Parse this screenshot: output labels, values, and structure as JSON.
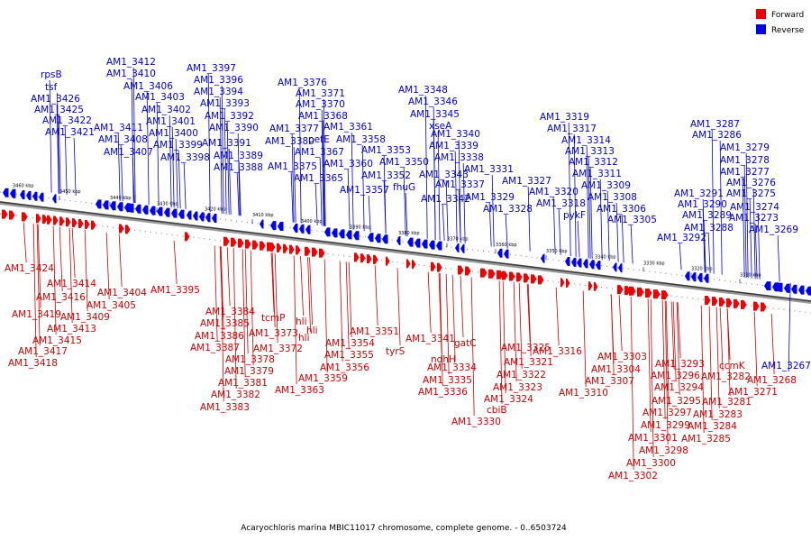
{
  "caption": "Acaryochloris marina MBIC11017 chromosome, complete genome. - 0..6503724",
  "legend": [
    {
      "label": "Forward",
      "color": "#ee0000"
    },
    {
      "label": "Reverse",
      "color": "#0000ee"
    }
  ],
  "colors": {
    "forward": "#ee0000",
    "reverse": "#0000ee",
    "forward_line": "#cc0000",
    "reverse_line": "#0000cc"
  },
  "axis_ticks": [
    "3460 kbp",
    "3450 kbp",
    "3440 kbp",
    "3430 kbp",
    "3420 kbp",
    "3410 kbp",
    "3400 kbp",
    "3390 kbp",
    "3380 kbp",
    "3370 kbp",
    "3360 kbp",
    "3350 kbp",
    "3340 kbp",
    "3330 kbp",
    "3320 kbp",
    "3310 kbp"
  ],
  "reverse_labels": [
    "rpsB",
    "tsf",
    "AM1_3426",
    "AM1_3425",
    "AM1_3422",
    "AM1_3421",
    "AM1_3412",
    "AM1_3410",
    "AM1_3406",
    "AM1_3403",
    "AM1_3402",
    "AM1_3401",
    "AM1_3411",
    "AM1_3408",
    "AM1_3407",
    "AM1_3400",
    "AM1_3399",
    "AM1_3398",
    "AM1_3397",
    "AM1_3396",
    "AM1_3394",
    "AM1_3393",
    "AM1_3392",
    "AM1_3390",
    "AM1_3391",
    "AM1_3389",
    "AM1_3388",
    "AM1_3376",
    "AM1_3371",
    "AM1_3370",
    "AM1_3368",
    "AM1_3377",
    "AM1_3380",
    "petE",
    "AM1_3367",
    "AM1_3375",
    "AM1_3365",
    "AM1_3361",
    "AM1_3358",
    "AM1_3360",
    "AM1_3353",
    "AM1_3357",
    "AM1_3348",
    "AM1_3346",
    "AM1_3345",
    "xseA",
    "AM1_3340",
    "AM1_3339",
    "AM1_3350",
    "AM1_3352",
    "AM1_3338",
    "AM1_3343",
    "fhuG",
    "AM1_3337",
    "AM1_3342",
    "AM1_3331",
    "AM1_3327",
    "AM1_3329",
    "AM1_3328",
    "AM1_3319",
    "AM1_3317",
    "AM1_3314",
    "AM1_3313",
    "AM1_3312",
    "AM1_3311",
    "AM1_3309",
    "AM1_3320",
    "AM1_3318",
    "AM1_3308",
    "pykF",
    "AM1_3306",
    "AM1_3305",
    "AM1_3287",
    "AM1_3286",
    "AM1_3279",
    "AM1_3278",
    "AM1_3277",
    "AM1_3291",
    "AM1_3276",
    "AM1_3290",
    "AM1_3275",
    "AM1_3289",
    "AM1_3274",
    "AM1_3273",
    "AM1_3288",
    "AM1_3292",
    "AM1_3269",
    "AM1_3267"
  ],
  "forward_labels": [
    "AM1_3424",
    "AM1_3414",
    "AM1_3416",
    "AM1_3404",
    "AM1_3405",
    "AM1_3419",
    "AM1_3409",
    "AM1_3413",
    "AM1_3415",
    "AM1_3417",
    "AM1_3418",
    "AM1_3395",
    "AM1_3384",
    "AM1_3385",
    "AM1_3386",
    "AM1_3387",
    "tcmP",
    "hli",
    "hli",
    "hli",
    "AM1_3373",
    "AM1_3372",
    "AM1_3378",
    "AM1_3379",
    "AM1_3381",
    "AM1_3382",
    "AM1_3383",
    "AM1_3363",
    "AM1_3351",
    "AM1_3354",
    "AM1_3355",
    "AM1_3356",
    "AM1_3359",
    "tyrS",
    "AM1_3341",
    "ndhH",
    "gatC",
    "AM1_3334",
    "AM1_3335",
    "AM1_3336",
    "AM1_3330",
    "AM1_3325",
    "AM1_3321",
    "AM1_3322",
    "AM1_3323",
    "AM1_3324",
    "cbiB",
    "AM1_3316",
    "AM1_3303",
    "AM1_3304",
    "AM1_3307",
    "AM1_3310",
    "AM1_3293",
    "AM1_3296",
    "AM1_3294",
    "AM1_3295",
    "AM1_3297",
    "AM1_3299",
    "AM1_3301",
    "AM1_3298",
    "AM1_3300",
    "AM1_3302",
    "ccmK",
    "AM1_3282",
    "AM1_3281",
    "AM1_3283",
    "AM1_3284",
    "AM1_3285",
    "AM1_3271",
    "AM1_3268"
  ]
}
